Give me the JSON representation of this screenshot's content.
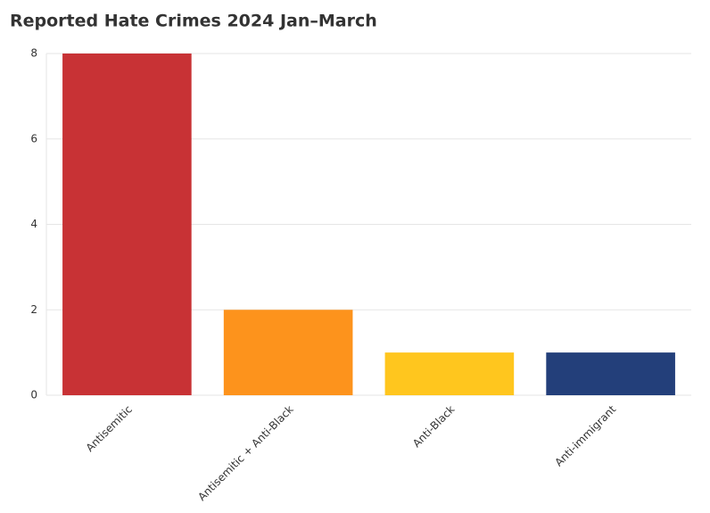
{
  "chart_data": {
    "type": "bar",
    "title": "Reported Hate Crimes 2024 Jan–March",
    "categories": [
      "Antisemitic",
      "Antisemitic + Anti-Black",
      "Anti-Black",
      "Anti-immigrant"
    ],
    "values": [
      8,
      2,
      1,
      1
    ],
    "colors": [
      "#c83235",
      "#fd931c",
      "#ffc61e",
      "#233f7a"
    ],
    "ylim": [
      0,
      8
    ],
    "yticks": [
      0,
      2,
      4,
      6,
      8
    ],
    "grid": true
  }
}
